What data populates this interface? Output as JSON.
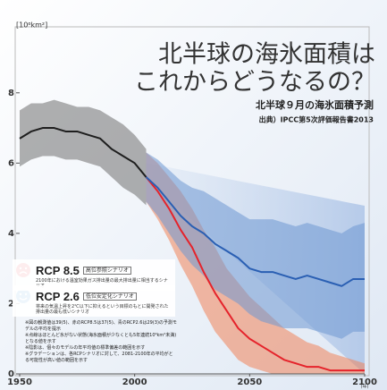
{
  "chart_data": {
    "type": "line",
    "title": "北半球の海氷面積は",
    "title_line2": "これからどうなるの？",
    "subtitle": "北半球９月の海氷面積予測",
    "source": "出典）IPCC第5次評価報告書2013",
    "y_label": "[10⁶km²]",
    "x_unit": "(年)",
    "x": [
      1950,
      1955,
      1960,
      1965,
      1970,
      1975,
      1980,
      1985,
      1990,
      1995,
      2000,
      2005,
      2010,
      2015,
      2020,
      2025,
      2030,
      2035,
      2040,
      2045,
      2050,
      2055,
      2060,
      2065,
      2070,
      2075,
      2080,
      2085,
      2090,
      2095,
      2100
    ],
    "xlim": [
      1950,
      2100
    ],
    "xticks": [
      1950,
      2000,
      2050,
      2100
    ],
    "ylim": [
      0,
      9.7
    ],
    "yticks": [
      0,
      2,
      4,
      6,
      8
    ],
    "grid": false,
    "series": [
      {
        "color": "#1e1e1e",
        "band_color": "#6f6f6f",
        "values": [
          6.7,
          6.9,
          7.0,
          7.0,
          6.9,
          6.9,
          6.8,
          6.7,
          6.4,
          6.2,
          6.0,
          5.6,
          null,
          null,
          null,
          null,
          null,
          null,
          null,
          null,
          null,
          null,
          null,
          null,
          null,
          null,
          null,
          null,
          null,
          null,
          null
        ],
        "upper": [
          7.5,
          7.7,
          7.7,
          7.8,
          7.7,
          7.6,
          7.6,
          7.5,
          7.3,
          7.1,
          6.8,
          6.4,
          null,
          null,
          null,
          null,
          null,
          null,
          null,
          null,
          null,
          null,
          null,
          null,
          null,
          null,
          null,
          null,
          null,
          null,
          null
        ],
        "lower": [
          5.9,
          6.1,
          6.2,
          6.2,
          6.1,
          6.1,
          6.0,
          5.9,
          5.6,
          5.3,
          5.1,
          4.8,
          null,
          null,
          null,
          null,
          null,
          null,
          null,
          null,
          null,
          null,
          null,
          null,
          null,
          null,
          null,
          null,
          null,
          null,
          null
        ]
      },
      {
        "name": "RCP 8.5",
        "scenario": "高位参照シナリオ",
        "description": "2100年における温室効果ガス排出量の最大排出量に相当するシナリオ",
        "color": "#e5232b",
        "band_color": "#f0845a",
        "values": [
          null,
          null,
          null,
          null,
          null,
          null,
          null,
          null,
          null,
          null,
          null,
          5.6,
          5.2,
          4.7,
          4.1,
          3.6,
          2.9,
          2.3,
          1.8,
          1.3,
          1.0,
          0.8,
          0.6,
          0.4,
          0.3,
          0.2,
          0.2,
          0.1,
          0.1,
          0.1,
          0.1
        ],
        "upper": [
          null,
          null,
          null,
          null,
          null,
          null,
          null,
          null,
          null,
          null,
          null,
          6.3,
          6.0,
          5.6,
          5.2,
          4.7,
          4.1,
          3.6,
          3.0,
          2.6,
          2.2,
          1.9,
          1.6,
          1.3,
          1.1,
          0.9,
          0.8,
          0.6,
          0.5,
          0.4,
          0.3
        ],
        "lower": [
          null,
          null,
          null,
          null,
          null,
          null,
          null,
          null,
          null,
          null,
          null,
          4.9,
          4.4,
          3.8,
          3.1,
          2.5,
          1.8,
          1.2,
          0.8,
          0.4,
          0.2,
          0.1,
          0,
          0,
          0,
          0,
          0,
          0,
          0,
          0,
          0
        ]
      },
      {
        "name": "RCP 2.6",
        "scenario": "低位安定化シナリオ",
        "description": "将来の気温上昇を2℃以下に抑えるという目標のもとに開発された排出量の最も低いシナリオ",
        "color": "#2a5fb3",
        "band_color": "#6e98d2",
        "values": [
          null,
          null,
          null,
          null,
          null,
          null,
          null,
          null,
          null,
          null,
          null,
          5.6,
          5.3,
          4.9,
          4.5,
          4.2,
          4.0,
          3.7,
          3.5,
          3.3,
          3.0,
          2.9,
          2.9,
          2.8,
          2.7,
          2.8,
          2.7,
          2.6,
          2.5,
          2.7,
          2.7
        ],
        "upper": [
          null,
          null,
          null,
          null,
          null,
          null,
          null,
          null,
          null,
          null,
          null,
          6.3,
          6.1,
          5.8,
          5.5,
          5.3,
          5.2,
          5.0,
          4.8,
          4.6,
          4.4,
          4.4,
          4.4,
          4.3,
          4.2,
          4.3,
          4.2,
          4.1,
          4.0,
          4.2,
          4.3
        ],
        "lower": [
          null,
          null,
          null,
          null,
          null,
          null,
          null,
          null,
          null,
          null,
          null,
          4.9,
          4.5,
          4.0,
          3.5,
          3.1,
          2.8,
          2.4,
          2.2,
          2.0,
          1.7,
          1.5,
          1.4,
          1.3,
          1.3,
          1.3,
          1.2,
          1.1,
          1.0,
          1.2,
          1.2
        ]
      }
    ],
    "notes": [
      "※図の観測値は39(5)、赤のRCP8.5は37(5)、青のRCP2.6は29(3)の予測モデルの平均を提示",
      "※点線はほとんど氷がない状態(海氷面積が少なくとも5年連続10⁶km²未満)となる値を示す",
      "※陰影は、個々のモデルの年平均値の標準偏差の範囲を示す",
      "※グラデーションは、各RCPシナリオに対して、2081-2100年の平均がとる可能性が高い値の範囲を示す"
    ]
  }
}
